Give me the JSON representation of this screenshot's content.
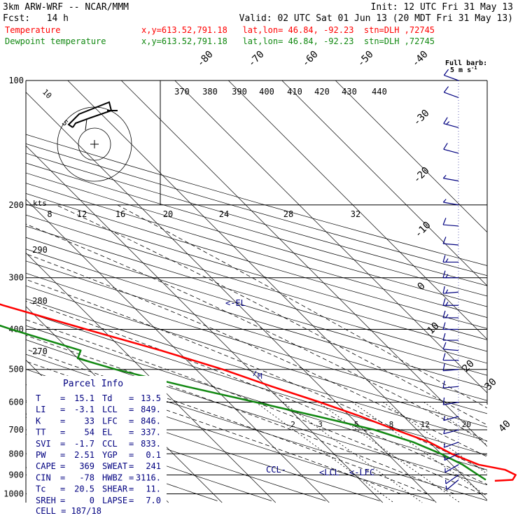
{
  "header": {
    "left_line1": "3km ARW-WRF -- NCAR/MMM",
    "left_line2": "Fcst:   14 h",
    "right_line1": "Init: 12 UTC Fri 31 May 13",
    "right_line2": "Valid: 02 UTC Sat 01 Jun 13 (20 MDT Fri 31 May 13)",
    "temp_legend": "Temperature",
    "temp_info": "x,y=613.52,791.18   lat,lon= 46.84, -92.23  stn=DLH ,72745",
    "dew_legend": "Dewpoint temperature",
    "dew_info": "x,y=613.52,791.18   lat,lon= 46.84, -92.23  stn=DLH ,72745"
  },
  "colors": {
    "temperature": "#ff0000",
    "dewpoint": "#118811",
    "annotation": "#000080",
    "barb": "#000080"
  },
  "barb_key": {
    "line1": "Full barb:",
    "line2": "5 m s",
    "exp": "-1"
  },
  "hodograph": {
    "ring_labels": [
      "5",
      "10"
    ],
    "units": "kts"
  },
  "parcel_info": {
    "title": "Parcel Info",
    "rows": [
      {
        "k1": "T",
        "v1": "15.1",
        "k2": "Td",
        "v2": "13.5"
      },
      {
        "k1": "LI",
        "v1": "-3.1",
        "k2": "LCL",
        "v2": "849."
      },
      {
        "k1": "K",
        "v1": "33",
        "k2": "LFC",
        "v2": "846."
      },
      {
        "k1": "TT",
        "v1": "54",
        "k2": "EL",
        "v2": "337."
      },
      {
        "k1": "SVI",
        "v1": "-1.7",
        "k2": "CCL",
        "v2": "833."
      },
      {
        "k1": "PW",
        "v1": "2.51",
        "k2": "YGP",
        "v2": "0.1"
      },
      {
        "k1": "CAPE",
        "v1": "369",
        "k2": "SWEAT",
        "v2": "241"
      },
      {
        "k1": "CIN",
        "v1": "-78",
        "k2": "HWBZ",
        "v2": "3116."
      },
      {
        "k1": "Tc",
        "v1": "20.5",
        "k2": "SHEAR",
        "v2": "11."
      },
      {
        "k1": "SREH",
        "v1": "0",
        "k2": "LAPSE",
        "v2": "7.0"
      }
    ],
    "cell": "CELL = 187/18"
  },
  "annotations": {
    "el": "<-EL",
    "lcl": "<LCL",
    "lfc": "<-LFC",
    "ccl": "CCL-",
    "wind_max": "M"
  },
  "chart_data": {
    "type": "line",
    "diagram": "skew-T log-p",
    "pressure_levels": [
      100,
      200,
      300,
      400,
      500,
      600,
      700,
      800,
      900,
      1000
    ],
    "pressure_labels": [
      "100",
      "200",
      "300",
      "400",
      "500",
      "600",
      "700",
      "800",
      "900",
      "1000"
    ],
    "isotherm_labels": [
      "-80",
      "-70",
      "-60",
      "-50",
      "-40",
      "-30",
      "-20",
      "-10",
      "0",
      "10",
      "20",
      "30",
      "40"
    ],
    "dry_adiabat_labels": [
      "370",
      "380",
      "390",
      "400",
      "410",
      "420",
      "430",
      "440"
    ],
    "dry_adiabat_lower_labels": [
      "290",
      "280",
      "270"
    ],
    "mixing_ratio_labels": [
      "2",
      "3",
      "5",
      "8",
      "12",
      "20"
    ],
    "upper_temp_axis_labels": [
      "8",
      "12",
      "16",
      "20",
      "24",
      "28",
      "32"
    ],
    "series": [
      {
        "name": "Temperature",
        "points": [
          [
            100,
            -64
          ],
          [
            150,
            -61
          ],
          [
            200,
            -55
          ],
          [
            250,
            -52
          ],
          [
            300,
            -50
          ],
          [
            330,
            -48
          ],
          [
            350,
            -44
          ],
          [
            400,
            -33
          ],
          [
            450,
            -23
          ],
          [
            500,
            -15
          ],
          [
            550,
            -9
          ],
          [
            600,
            -3
          ],
          [
            650,
            2
          ],
          [
            700,
            6
          ],
          [
            750,
            10
          ],
          [
            800,
            12
          ],
          [
            850,
            15
          ],
          [
            875,
            19
          ],
          [
            900,
            20
          ],
          [
            925,
            18.5
          ],
          [
            930,
            15
          ]
        ]
      },
      {
        "name": "Dewpoint temperature",
        "points": [
          [
            100,
            -80
          ],
          [
            120,
            -80
          ],
          [
            150,
            -81
          ],
          [
            175,
            -86
          ],
          [
            200,
            -87
          ],
          [
            240,
            -90
          ],
          [
            270,
            -90
          ],
          [
            300,
            -85
          ],
          [
            330,
            -65
          ],
          [
            350,
            -56
          ],
          [
            400,
            -47
          ],
          [
            450,
            -38
          ],
          [
            470,
            -40
          ],
          [
            500,
            -35
          ],
          [
            550,
            -25
          ],
          [
            600,
            -15
          ],
          [
            650,
            -6
          ],
          [
            700,
            2
          ],
          [
            750,
            7
          ],
          [
            800,
            10
          ],
          [
            850,
            12
          ],
          [
            875,
            12.5
          ],
          [
            900,
            13
          ],
          [
            925,
            13.5
          ]
        ]
      }
    ],
    "wind_barbs": [
      [
        100,
        290,
        10
      ],
      [
        110,
        290,
        10
      ],
      [
        130,
        285,
        15
      ],
      [
        150,
        285,
        10
      ],
      [
        175,
        280,
        5
      ],
      [
        200,
        280,
        5
      ],
      [
        225,
        275,
        10
      ],
      [
        250,
        275,
        10
      ],
      [
        275,
        270,
        15
      ],
      [
        300,
        270,
        15
      ],
      [
        325,
        265,
        15
      ],
      [
        350,
        270,
        15
      ],
      [
        375,
        270,
        15
      ],
      [
        400,
        270,
        10
      ],
      [
        425,
        270,
        10
      ],
      [
        450,
        275,
        10
      ],
      [
        475,
        270,
        10
      ],
      [
        500,
        265,
        10
      ],
      [
        550,
        265,
        10
      ],
      [
        600,
        260,
        10
      ],
      [
        650,
        255,
        5
      ],
      [
        700,
        255,
        5
      ],
      [
        750,
        250,
        5
      ],
      [
        800,
        245,
        5
      ],
      [
        850,
        240,
        5
      ],
      [
        900,
        235,
        5
      ],
      [
        925,
        230,
        5
      ]
    ]
  }
}
